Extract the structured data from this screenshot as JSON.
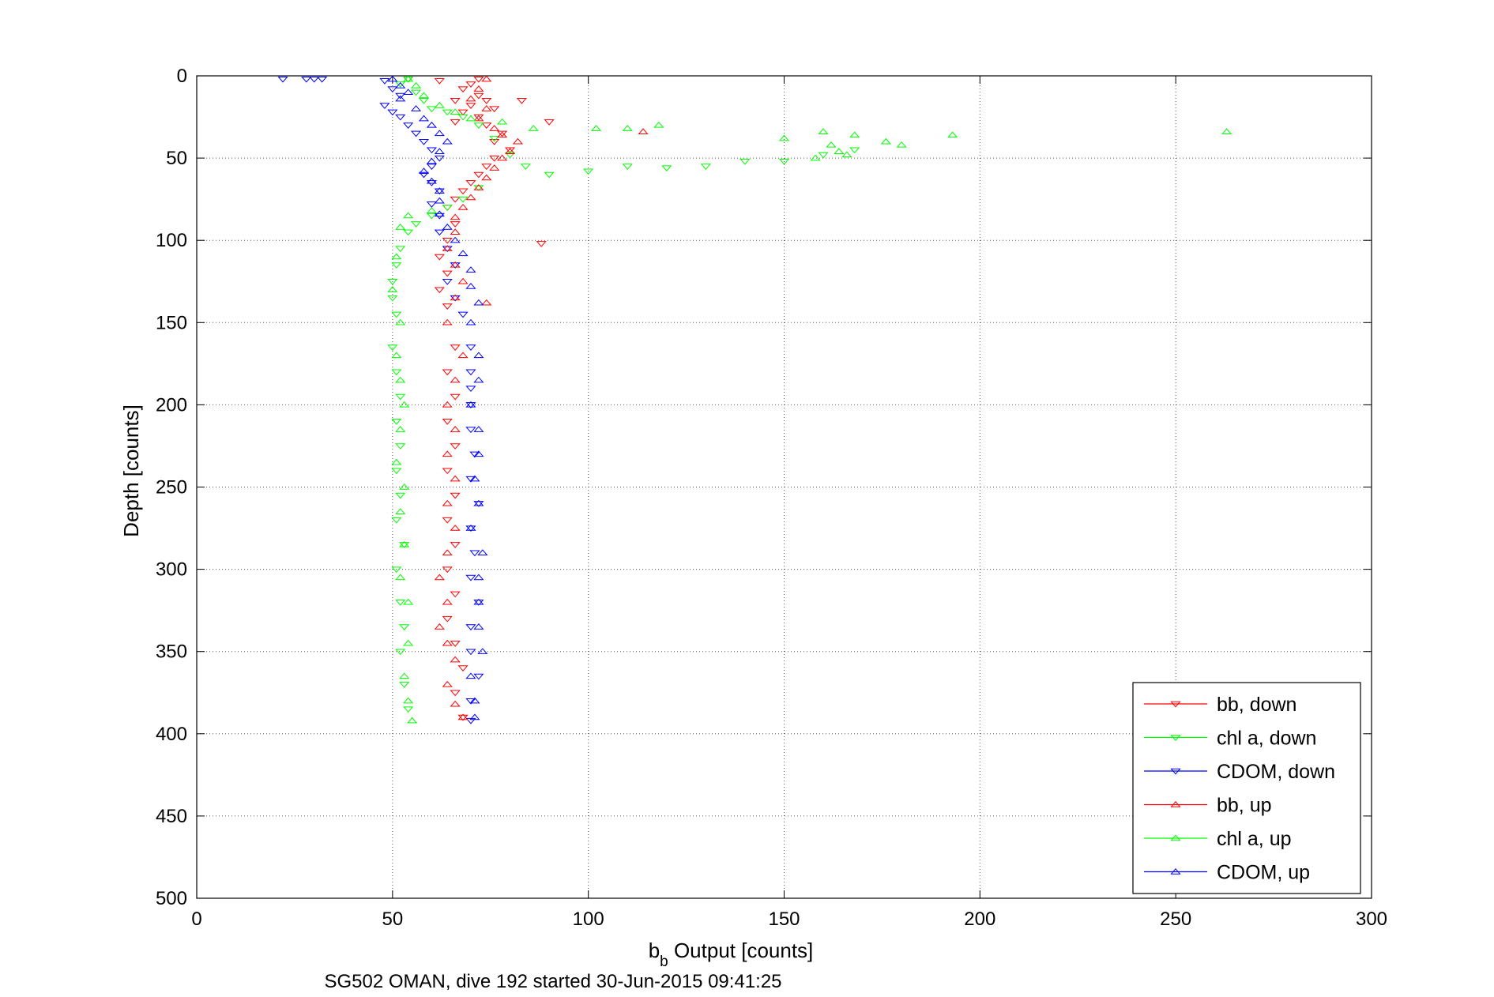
{
  "chart_data": {
    "type": "scatter",
    "xlabel_main": "b",
    "xlabel_sub": "b",
    "xlabel_rest": " Output [counts]",
    "ylabel": "Depth [counts]",
    "caption": "SG502 OMAN, dive 192 started 30-Jun-2015 09:41:25",
    "xlim": [
      0,
      300
    ],
    "ylim": [
      0,
      500
    ],
    "y_reversed": true,
    "grid": true,
    "legend_position": "bottom-right",
    "x_ticks": [
      "0",
      "50",
      "100",
      "150",
      "200",
      "250",
      "300"
    ],
    "y_ticks": [
      "0",
      "50",
      "100",
      "150",
      "200",
      "250",
      "300",
      "350",
      "400",
      "450",
      "500"
    ],
    "series": [
      {
        "name": "bb, down",
        "color": "#ff0000",
        "marker": "triangle-down",
        "points": [
          [
            72,
            2
          ],
          [
            70,
            5
          ],
          [
            68,
            8
          ],
          [
            72,
            12
          ],
          [
            66,
            15
          ],
          [
            70,
            18
          ],
          [
            68,
            22
          ],
          [
            72,
            25
          ],
          [
            66,
            28
          ],
          [
            74,
            30
          ],
          [
            78,
            35
          ],
          [
            76,
            40
          ],
          [
            80,
            45
          ],
          [
            76,
            50
          ],
          [
            74,
            55
          ],
          [
            72,
            60
          ],
          [
            70,
            65
          ],
          [
            68,
            70
          ],
          [
            66,
            75
          ],
          [
            64,
            80
          ],
          [
            66,
            90
          ],
          [
            64,
            100
          ],
          [
            62,
            110
          ],
          [
            64,
            120
          ],
          [
            62,
            130
          ],
          [
            64,
            140
          ],
          [
            66,
            165
          ],
          [
            64,
            180
          ],
          [
            66,
            195
          ],
          [
            64,
            210
          ],
          [
            66,
            225
          ],
          [
            64,
            240
          ],
          [
            66,
            255
          ],
          [
            64,
            270
          ],
          [
            66,
            285
          ],
          [
            64,
            300
          ],
          [
            66,
            315
          ],
          [
            64,
            330
          ],
          [
            66,
            345
          ],
          [
            68,
            360
          ],
          [
            66,
            375
          ],
          [
            68,
            390
          ],
          [
            54,
            2
          ],
          [
            62,
            3
          ],
          [
            83,
            15
          ],
          [
            90,
            28
          ],
          [
            88,
            102
          ],
          [
            74,
            15
          ],
          [
            76,
            20
          ]
        ]
      },
      {
        "name": "chl a, down",
        "color": "#00ff00",
        "marker": "triangle-down",
        "points": [
          [
            54,
            2
          ],
          [
            52,
            5
          ],
          [
            56,
            10
          ],
          [
            58,
            15
          ],
          [
            60,
            20
          ],
          [
            64,
            22
          ],
          [
            68,
            25
          ],
          [
            72,
            30
          ],
          [
            76,
            38
          ],
          [
            80,
            48
          ],
          [
            84,
            55
          ],
          [
            90,
            60
          ],
          [
            100,
            58
          ],
          [
            110,
            55
          ],
          [
            120,
            56
          ],
          [
            130,
            55
          ],
          [
            140,
            52
          ],
          [
            150,
            52
          ],
          [
            160,
            48
          ],
          [
            168,
            45
          ],
          [
            72,
            68
          ],
          [
            68,
            75
          ],
          [
            64,
            80
          ],
          [
            60,
            85
          ],
          [
            56,
            90
          ],
          [
            54,
            95
          ],
          [
            52,
            105
          ],
          [
            51,
            115
          ],
          [
            50,
            125
          ],
          [
            50,
            135
          ],
          [
            51,
            145
          ],
          [
            50,
            165
          ],
          [
            51,
            180
          ],
          [
            52,
            195
          ],
          [
            51,
            210
          ],
          [
            52,
            225
          ],
          [
            51,
            240
          ],
          [
            52,
            255
          ],
          [
            51,
            270
          ],
          [
            53,
            285
          ],
          [
            51,
            300
          ],
          [
            52,
            320
          ],
          [
            53,
            335
          ],
          [
            52,
            350
          ],
          [
            53,
            370
          ],
          [
            54,
            385
          ]
        ]
      },
      {
        "name": "CDOM, down",
        "color": "#0000ff",
        "marker": "triangle-down",
        "points": [
          [
            22,
            2
          ],
          [
            28,
            2
          ],
          [
            30,
            2
          ],
          [
            32,
            2
          ],
          [
            48,
            3
          ],
          [
            50,
            8
          ],
          [
            52,
            12
          ],
          [
            48,
            18
          ],
          [
            50,
            22
          ],
          [
            52,
            25
          ],
          [
            54,
            30
          ],
          [
            56,
            35
          ],
          [
            58,
            40
          ],
          [
            60,
            45
          ],
          [
            62,
            50
          ],
          [
            60,
            55
          ],
          [
            58,
            60
          ],
          [
            60,
            65
          ],
          [
            62,
            70
          ],
          [
            60,
            78
          ],
          [
            62,
            85
          ],
          [
            62,
            95
          ],
          [
            64,
            105
          ],
          [
            66,
            115
          ],
          [
            64,
            125
          ],
          [
            66,
            135
          ],
          [
            68,
            145
          ],
          [
            70,
            165
          ],
          [
            70,
            180
          ],
          [
            70,
            190
          ],
          [
            70,
            200
          ],
          [
            70,
            215
          ],
          [
            71,
            230
          ],
          [
            70,
            245
          ],
          [
            72,
            260
          ],
          [
            70,
            275
          ],
          [
            71,
            290
          ],
          [
            70,
            305
          ],
          [
            72,
            320
          ],
          [
            70,
            335
          ],
          [
            70,
            350
          ],
          [
            72,
            365
          ],
          [
            70,
            380
          ],
          [
            70,
            392
          ]
        ]
      },
      {
        "name": "bb, up",
        "color": "#ff0000",
        "marker": "triangle-up",
        "points": [
          [
            74,
            2
          ],
          [
            72,
            8
          ],
          [
            70,
            14
          ],
          [
            74,
            20
          ],
          [
            72,
            26
          ],
          [
            76,
            32
          ],
          [
            78,
            36
          ],
          [
            82,
            40
          ],
          [
            80,
            46
          ],
          [
            78,
            50
          ],
          [
            76,
            56
          ],
          [
            74,
            62
          ],
          [
            72,
            68
          ],
          [
            70,
            74
          ],
          [
            68,
            80
          ],
          [
            66,
            86
          ],
          [
            66,
            95
          ],
          [
            64,
            105
          ],
          [
            66,
            115
          ],
          [
            68,
            125
          ],
          [
            66,
            135
          ],
          [
            74,
            138
          ],
          [
            114,
            34
          ],
          [
            64,
            150
          ],
          [
            68,
            170
          ],
          [
            66,
            185
          ],
          [
            64,
            200
          ],
          [
            66,
            215
          ],
          [
            64,
            230
          ],
          [
            66,
            245
          ],
          [
            64,
            260
          ],
          [
            66,
            275
          ],
          [
            64,
            290
          ],
          [
            62,
            305
          ],
          [
            64,
            320
          ],
          [
            62,
            335
          ],
          [
            64,
            345
          ],
          [
            66,
            355
          ],
          [
            64,
            370
          ],
          [
            66,
            382
          ],
          [
            68,
            390
          ]
        ]
      },
      {
        "name": "chl a, up",
        "color": "#00ff00",
        "marker": "triangle-up",
        "points": [
          [
            54,
            2
          ],
          [
            56,
            6
          ],
          [
            58,
            12
          ],
          [
            62,
            18
          ],
          [
            66,
            22
          ],
          [
            70,
            26
          ],
          [
            78,
            28
          ],
          [
            86,
            32
          ],
          [
            102,
            32
          ],
          [
            110,
            32
          ],
          [
            118,
            30
          ],
          [
            150,
            38
          ],
          [
            160,
            34
          ],
          [
            168,
            36
          ],
          [
            176,
            40
          ],
          [
            180,
            42
          ],
          [
            193,
            36
          ],
          [
            263,
            34
          ],
          [
            162,
            42
          ],
          [
            164,
            46
          ],
          [
            158,
            50
          ],
          [
            166,
            48
          ],
          [
            60,
            82
          ],
          [
            54,
            85
          ],
          [
            52,
            92
          ],
          [
            51,
            110
          ],
          [
            50,
            130
          ],
          [
            52,
            150
          ],
          [
            51,
            170
          ],
          [
            52,
            185
          ],
          [
            53,
            200
          ],
          [
            52,
            215
          ],
          [
            51,
            235
          ],
          [
            53,
            250
          ],
          [
            52,
            265
          ],
          [
            53,
            285
          ],
          [
            52,
            305
          ],
          [
            54,
            320
          ],
          [
            54,
            345
          ],
          [
            53,
            365
          ],
          [
            54,
            380
          ],
          [
            55,
            392
          ]
        ]
      },
      {
        "name": "CDOM, up",
        "color": "#0000ff",
        "marker": "triangle-up",
        "points": [
          [
            50,
            2
          ],
          [
            52,
            6
          ],
          [
            54,
            10
          ],
          [
            52,
            14
          ],
          [
            56,
            20
          ],
          [
            58,
            26
          ],
          [
            60,
            30
          ],
          [
            62,
            35
          ],
          [
            64,
            40
          ],
          [
            62,
            46
          ],
          [
            60,
            52
          ],
          [
            58,
            58
          ],
          [
            60,
            64
          ],
          [
            62,
            70
          ],
          [
            62,
            76
          ],
          [
            62,
            84
          ],
          [
            64,
            92
          ],
          [
            66,
            100
          ],
          [
            68,
            108
          ],
          [
            70,
            118
          ],
          [
            70,
            128
          ],
          [
            72,
            138
          ],
          [
            70,
            150
          ],
          [
            72,
            170
          ],
          [
            72,
            185
          ],
          [
            70,
            200
          ],
          [
            72,
            215
          ],
          [
            72,
            230
          ],
          [
            71,
            245
          ],
          [
            72,
            260
          ],
          [
            70,
            275
          ],
          [
            73,
            290
          ],
          [
            72,
            305
          ],
          [
            72,
            320
          ],
          [
            72,
            335
          ],
          [
            73,
            350
          ],
          [
            70,
            365
          ],
          [
            71,
            380
          ],
          [
            71,
            390
          ]
        ]
      }
    ]
  }
}
